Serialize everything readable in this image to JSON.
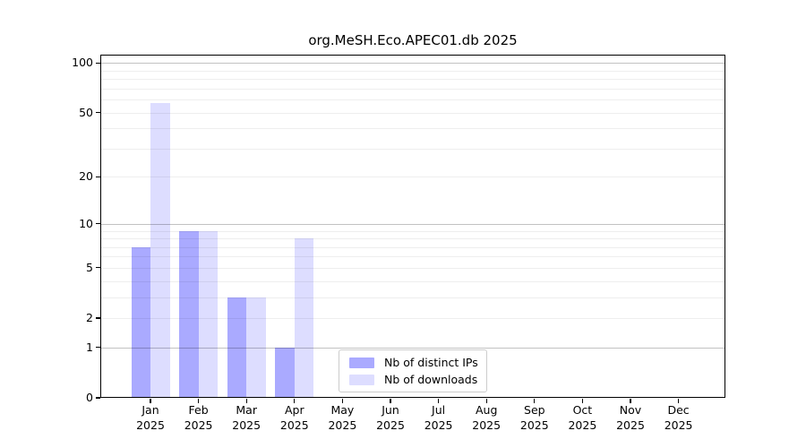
{
  "chart_data": {
    "type": "bar",
    "title": "org.MeSH.Eco.APEC01.db 2025",
    "months": [
      "Jan",
      "Feb",
      "Mar",
      "Apr",
      "May",
      "Jun",
      "Jul",
      "Aug",
      "Sep",
      "Oct",
      "Nov",
      "Dec"
    ],
    "year": "2025",
    "categories": [
      "Jan 2025",
      "Feb 2025",
      "Mar 2025",
      "Apr 2025",
      "May 2025",
      "Jun 2025",
      "Jul 2025",
      "Aug 2025",
      "Sep 2025",
      "Oct 2025",
      "Nov 2025",
      "Dec 2025"
    ],
    "series": [
      {
        "name": "Nb of distinct IPs",
        "color": "#aaaaff",
        "values": [
          7,
          9,
          3,
          1,
          0,
          0,
          0,
          0,
          0,
          0,
          0,
          0
        ]
      },
      {
        "name": "Nb of downloads",
        "color": "#ddddff",
        "values": [
          57,
          9,
          3,
          8,
          0,
          0,
          0,
          0,
          0,
          0,
          0,
          0
        ]
      }
    ],
    "xlabel": "",
    "ylabel": "",
    "y_axis": {
      "scale": "log10(1+x)",
      "ticks": [
        0,
        1,
        2,
        5,
        10,
        20,
        50,
        100
      ],
      "major_gridlines": [
        1,
        10,
        100
      ],
      "minor_gridlines": [
        2,
        3,
        4,
        5,
        6,
        7,
        8,
        9,
        20,
        30,
        40,
        50,
        60,
        70,
        80,
        90
      ],
      "ylim": [
        0,
        112
      ]
    },
    "legend": {
      "position": "lower-center",
      "entries": [
        "Nb of distinct IPs",
        "Nb of downloads"
      ]
    },
    "grid": true,
    "colors": {
      "distinct_ips": "#aaaaff",
      "downloads": "#ddddff",
      "minor_grid_over_white": "#efefef",
      "major_grid_over_white": "#c2c2c2",
      "spine": "#000000",
      "legend_border": "#cccccc",
      "background": "#ffffff",
      "text": "#000000"
    }
  }
}
